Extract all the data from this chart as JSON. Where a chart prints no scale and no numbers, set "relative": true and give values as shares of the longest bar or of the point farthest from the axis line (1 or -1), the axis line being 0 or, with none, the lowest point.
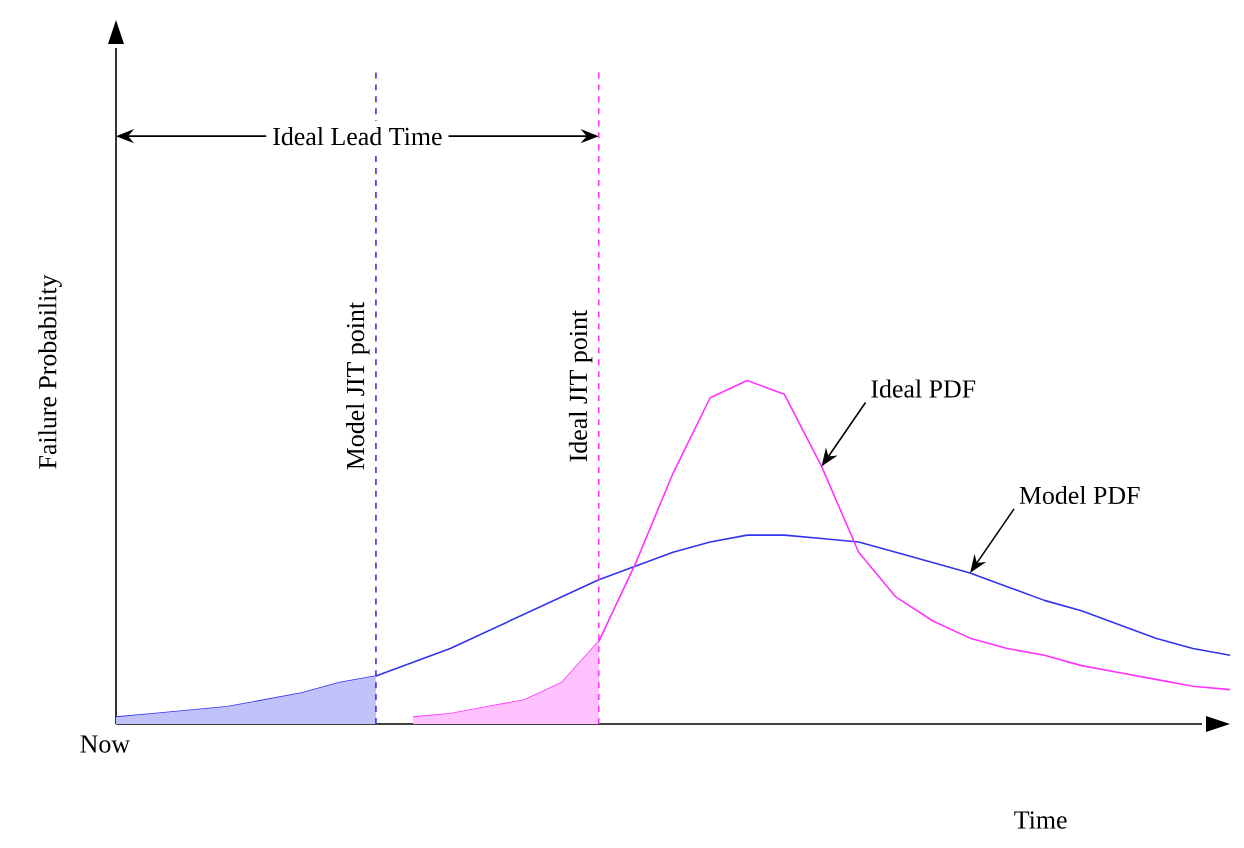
{
  "chart_data": {
    "type": "line",
    "relative": true,
    "xlabel": "Time",
    "ylabel": "Failure Probability",
    "marker": "none",
    "line_style": "solid",
    "categories": [
      null,
      null,
      null,
      null,
      null,
      null,
      null,
      null,
      null,
      null,
      null,
      null,
      null,
      null,
      null,
      null,
      null,
      null,
      null,
      null,
      null,
      null,
      null,
      null,
      null,
      null,
      null,
      null,
      null,
      null,
      null
    ],
    "series": [
      {
        "name": "Model PDF",
        "color": "#3333ee",
        "values": [
          0.02,
          0.03,
          0.04,
          0.05,
          0.07,
          0.09,
          0.12,
          0.14,
          0.18,
          0.22,
          0.27,
          0.32,
          0.37,
          0.42,
          0.46,
          0.5,
          0.53,
          0.55,
          0.55,
          0.54,
          0.53,
          0.5,
          0.47,
          0.44,
          0.4,
          0.36,
          0.33,
          0.29,
          0.25,
          0.22,
          0.2
        ]
      },
      {
        "name": "Ideal PDF",
        "color": "#ff33ff",
        "values": [
          null,
          null,
          null,
          null,
          null,
          null,
          null,
          null,
          0.02,
          0.03,
          0.05,
          0.07,
          0.12,
          0.24,
          0.47,
          0.73,
          0.95,
          1,
          0.96,
          0.75,
          0.5,
          0.37,
          0.3,
          0.25,
          0.22,
          0.2,
          0.17,
          0.15,
          0.13,
          0.11,
          0.1
        ]
      },
      {
        "type": "area",
        "color": "#c2c2fa",
        "values": [
          0.02,
          0.03,
          0.04,
          0.05,
          0.07,
          0.09,
          0.12,
          0.14,
          null,
          null,
          null,
          null,
          null,
          null,
          null,
          null,
          null,
          null,
          null,
          null,
          null,
          null,
          null,
          null,
          null,
          null,
          null,
          null,
          null,
          null,
          null
        ]
      },
      {
        "type": "area",
        "color": "#ffc2ff",
        "values": [
          null,
          null,
          null,
          null,
          null,
          null,
          null,
          null,
          0.02,
          0.03,
          0.05,
          0.07,
          0.12,
          0.24,
          null,
          null,
          null,
          null,
          null,
          null,
          null,
          null,
          null,
          null,
          null,
          null,
          null,
          null,
          null,
          null,
          null
        ]
      }
    ],
    "annotations": [
      "Now",
      "Model JIT point",
      "Ideal JIT point",
      "Ideal Lead Time"
    ]
  }
}
